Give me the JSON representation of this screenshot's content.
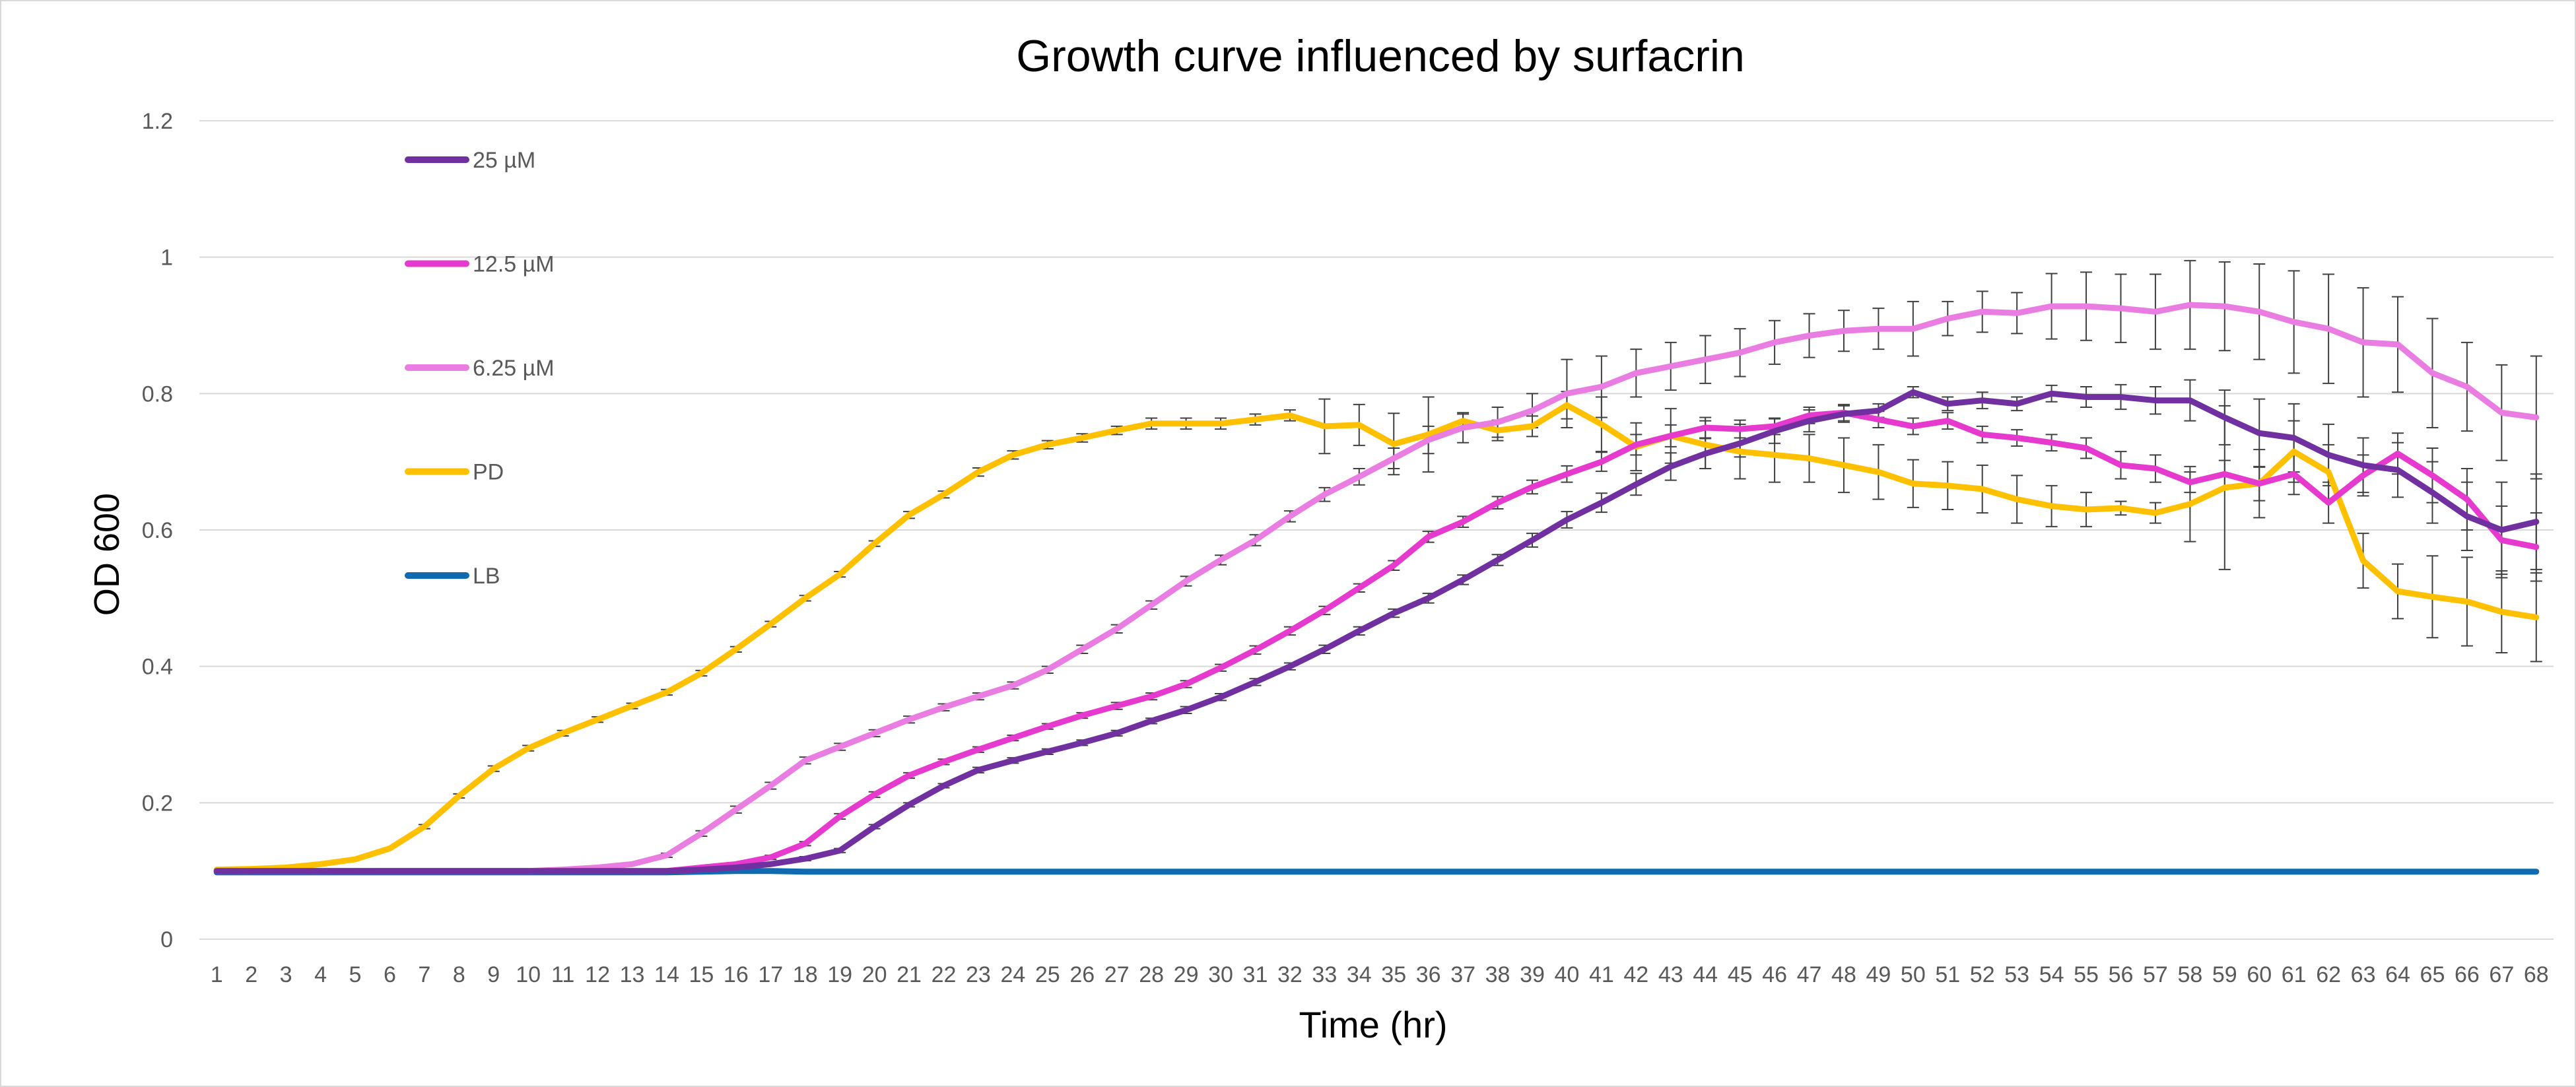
{
  "chart_data": {
    "type": "line",
    "title": "Growth curve influenced by surfacrin",
    "xlabel": "Time (hr)",
    "ylabel": "OD 600",
    "ylim": [
      0,
      1.2
    ],
    "yticks": [
      0,
      0.2,
      0.4,
      0.6,
      0.8,
      1,
      1.2
    ],
    "ytick_labels": [
      "0",
      "0.2",
      "0.4",
      "0.6",
      "0.8",
      "1",
      "1.2"
    ],
    "grid": true,
    "legend_position": "top-left",
    "error_bars": true,
    "x": [
      1,
      2,
      3,
      4,
      5,
      6,
      7,
      8,
      9,
      10,
      11,
      12,
      13,
      14,
      15,
      16,
      17,
      18,
      19,
      20,
      21,
      22,
      23,
      24,
      25,
      26,
      27,
      28,
      29,
      30,
      31,
      32,
      33,
      34,
      35,
      36,
      37,
      38,
      39,
      40,
      41,
      42,
      43,
      44,
      45,
      46,
      47,
      48,
      49,
      50,
      51,
      52,
      53,
      54,
      55,
      56,
      57,
      58,
      59,
      60,
      61,
      62,
      63,
      64,
      65,
      66,
      67,
      68
    ],
    "series": [
      {
        "name": "25 µM",
        "color": "#7030A0",
        "values": [
          0.1,
          0.1,
          0.1,
          0.1,
          0.1,
          0.1,
          0.1,
          0.1,
          0.1,
          0.1,
          0.1,
          0.1,
          0.1,
          0.1,
          0.102,
          0.105,
          0.11,
          0.118,
          0.13,
          0.165,
          0.197,
          0.225,
          0.248,
          0.262,
          0.275,
          0.288,
          0.302,
          0.32,
          0.336,
          0.355,
          0.377,
          0.4,
          0.425,
          0.452,
          0.478,
          0.5,
          0.527,
          0.556,
          0.585,
          0.615,
          0.64,
          0.667,
          0.693,
          0.712,
          0.727,
          0.745,
          0.76,
          0.77,
          0.775,
          0.802,
          0.785,
          0.79,
          0.785,
          0.8,
          0.795,
          0.795,
          0.79,
          0.79,
          0.765,
          0.742,
          0.735,
          0.71,
          0.695,
          0.688,
          0.655,
          0.62,
          0.6,
          0.612
        ],
        "errors": [
          0.001,
          0.001,
          0.001,
          0.001,
          0.001,
          0.001,
          0.001,
          0.001,
          0.001,
          0.001,
          0.001,
          0.001,
          0.001,
          0.001,
          0.002,
          0.002,
          0.002,
          0.003,
          0.003,
          0.003,
          0.003,
          0.003,
          0.004,
          0.004,
          0.004,
          0.004,
          0.004,
          0.004,
          0.005,
          0.005,
          0.005,
          0.005,
          0.006,
          0.006,
          0.006,
          0.007,
          0.007,
          0.008,
          0.01,
          0.012,
          0.014,
          0.016,
          0.02,
          0.022,
          0.02,
          0.018,
          0.016,
          0.012,
          0.01,
          0.008,
          0.01,
          0.012,
          0.01,
          0.012,
          0.015,
          0.018,
          0.02,
          0.03,
          0.04,
          0.05,
          0.05,
          0.045,
          0.04,
          0.04,
          0.045,
          0.05,
          0.07,
          0.07
        ]
      },
      {
        "name": "12.5 µM",
        "color": "#E63ACF",
        "values": [
          0.1,
          0.1,
          0.1,
          0.1,
          0.1,
          0.1,
          0.1,
          0.1,
          0.1,
          0.1,
          0.1,
          0.1,
          0.1,
          0.1,
          0.105,
          0.11,
          0.12,
          0.14,
          0.18,
          0.212,
          0.24,
          0.26,
          0.278,
          0.295,
          0.312,
          0.328,
          0.342,
          0.356,
          0.374,
          0.398,
          0.424,
          0.452,
          0.482,
          0.515,
          0.548,
          0.59,
          0.612,
          0.64,
          0.663,
          0.682,
          0.7,
          0.725,
          0.738,
          0.75,
          0.748,
          0.752,
          0.768,
          0.772,
          0.762,
          0.752,
          0.76,
          0.74,
          0.735,
          0.728,
          0.72,
          0.695,
          0.69,
          0.67,
          0.682,
          0.668,
          0.682,
          0.64,
          0.68,
          0.712,
          0.68,
          0.645,
          0.585,
          0.575
        ],
        "errors": [
          0.001,
          0.001,
          0.001,
          0.001,
          0.001,
          0.001,
          0.001,
          0.001,
          0.001,
          0.001,
          0.001,
          0.001,
          0.001,
          0.001,
          0.002,
          0.002,
          0.003,
          0.003,
          0.004,
          0.004,
          0.004,
          0.004,
          0.004,
          0.004,
          0.004,
          0.004,
          0.005,
          0.005,
          0.005,
          0.005,
          0.006,
          0.006,
          0.006,
          0.006,
          0.007,
          0.008,
          0.008,
          0.009,
          0.01,
          0.012,
          0.014,
          0.015,
          0.016,
          0.015,
          0.013,
          0.012,
          0.012,
          0.012,
          0.012,
          0.012,
          0.012,
          0.012,
          0.012,
          0.012,
          0.015,
          0.02,
          0.02,
          0.015,
          0.02,
          0.025,
          0.03,
          0.03,
          0.03,
          0.03,
          0.04,
          0.045,
          0.05,
          0.05
        ]
      },
      {
        "name": "6.25 µM",
        "color": "#E97DE2",
        "values": [
          0.1,
          0.1,
          0.1,
          0.1,
          0.1,
          0.1,
          0.1,
          0.1,
          0.1,
          0.1,
          0.102,
          0.105,
          0.11,
          0.123,
          0.155,
          0.19,
          0.225,
          0.262,
          0.282,
          0.302,
          0.322,
          0.34,
          0.356,
          0.372,
          0.395,
          0.425,
          0.455,
          0.49,
          0.525,
          0.556,
          0.585,
          0.62,
          0.652,
          0.678,
          0.705,
          0.732,
          0.75,
          0.758,
          0.775,
          0.8,
          0.81,
          0.83,
          0.84,
          0.85,
          0.86,
          0.875,
          0.885,
          0.892,
          0.895,
          0.895,
          0.91,
          0.92,
          0.918,
          0.928,
          0.928,
          0.925,
          0.92,
          0.93,
          0.928,
          0.92,
          0.905,
          0.895,
          0.875,
          0.872,
          0.83,
          0.81,
          0.772,
          0.765
        ],
        "errors": [
          0.001,
          0.001,
          0.001,
          0.001,
          0.001,
          0.001,
          0.001,
          0.001,
          0.001,
          0.001,
          0.001,
          0.002,
          0.002,
          0.003,
          0.004,
          0.005,
          0.005,
          0.005,
          0.005,
          0.005,
          0.005,
          0.005,
          0.005,
          0.005,
          0.005,
          0.006,
          0.006,
          0.006,
          0.007,
          0.007,
          0.008,
          0.008,
          0.01,
          0.012,
          0.015,
          0.02,
          0.022,
          0.022,
          0.025,
          0.05,
          0.045,
          0.035,
          0.035,
          0.035,
          0.035,
          0.032,
          0.032,
          0.03,
          0.03,
          0.04,
          0.025,
          0.03,
          0.03,
          0.048,
          0.05,
          0.05,
          0.055,
          0.065,
          0.065,
          0.07,
          0.075,
          0.08,
          0.08,
          0.07,
          0.08,
          0.065,
          0.07,
          0.09
        ]
      },
      {
        "name": "PD",
        "color": "#FFC000",
        "values": [
          0.102,
          0.103,
          0.105,
          0.11,
          0.117,
          0.133,
          0.165,
          0.21,
          0.25,
          0.28,
          0.302,
          0.322,
          0.342,
          0.362,
          0.39,
          0.425,
          0.462,
          0.5,
          0.535,
          0.58,
          0.622,
          0.652,
          0.685,
          0.71,
          0.725,
          0.735,
          0.746,
          0.756,
          0.756,
          0.756,
          0.762,
          0.768,
          0.752,
          0.754,
          0.726,
          0.74,
          0.76,
          0.746,
          0.752,
          0.783,
          0.755,
          0.722,
          0.738,
          0.725,
          0.715,
          0.71,
          0.705,
          0.695,
          0.685,
          0.668,
          0.665,
          0.66,
          0.645,
          0.635,
          0.63,
          0.632,
          0.625,
          0.638,
          0.662,
          0.668,
          0.715,
          0.685,
          0.555,
          0.51,
          0.502,
          0.495,
          0.48,
          0.472
        ],
        "errors": [
          0.001,
          0.001,
          0.001,
          0.001,
          0.002,
          0.002,
          0.003,
          0.003,
          0.004,
          0.004,
          0.004,
          0.004,
          0.004,
          0.004,
          0.004,
          0.004,
          0.004,
          0.004,
          0.004,
          0.004,
          0.005,
          0.005,
          0.006,
          0.006,
          0.006,
          0.006,
          0.006,
          0.008,
          0.008,
          0.008,
          0.008,
          0.008,
          0.04,
          0.03,
          0.045,
          0.055,
          0.01,
          0.015,
          0.015,
          0.02,
          0.04,
          0.035,
          0.04,
          0.035,
          0.04,
          0.04,
          0.035,
          0.04,
          0.04,
          0.035,
          0.035,
          0.035,
          0.035,
          0.03,
          0.025,
          0.01,
          0.015,
          0.055,
          0.12,
          0.05,
          0.045,
          0.04,
          0.04,
          0.04,
          0.06,
          0.065,
          0.06,
          0.065
        ]
      },
      {
        "name": "LB",
        "color": "#0F6AB0",
        "values": [
          0.098,
          0.098,
          0.098,
          0.098,
          0.098,
          0.098,
          0.098,
          0.098,
          0.098,
          0.098,
          0.098,
          0.098,
          0.098,
          0.098,
          0.099,
          0.1,
          0.1,
          0.099,
          0.099,
          0.099,
          0.099,
          0.099,
          0.099,
          0.099,
          0.099,
          0.099,
          0.099,
          0.099,
          0.099,
          0.099,
          0.099,
          0.099,
          0.099,
          0.099,
          0.099,
          0.099,
          0.099,
          0.099,
          0.099,
          0.099,
          0.099,
          0.099,
          0.099,
          0.099,
          0.099,
          0.099,
          0.099,
          0.099,
          0.099,
          0.099,
          0.099,
          0.099,
          0.099,
          0.099,
          0.099,
          0.099,
          0.099,
          0.099,
          0.099,
          0.099,
          0.099,
          0.099,
          0.099,
          0.099,
          0.099,
          0.099,
          0.099,
          0.099
        ],
        "errors": [
          0,
          0,
          0,
          0,
          0,
          0,
          0,
          0,
          0,
          0,
          0,
          0,
          0,
          0,
          0,
          0,
          0,
          0,
          0,
          0,
          0,
          0,
          0,
          0,
          0,
          0,
          0,
          0,
          0,
          0,
          0,
          0,
          0,
          0,
          0,
          0,
          0,
          0,
          0,
          0,
          0,
          0,
          0,
          0,
          0,
          0,
          0,
          0,
          0,
          0,
          0,
          0,
          0,
          0,
          0,
          0,
          0,
          0,
          0,
          0,
          0,
          0,
          0,
          0,
          0,
          0,
          0,
          0
        ]
      }
    ]
  }
}
